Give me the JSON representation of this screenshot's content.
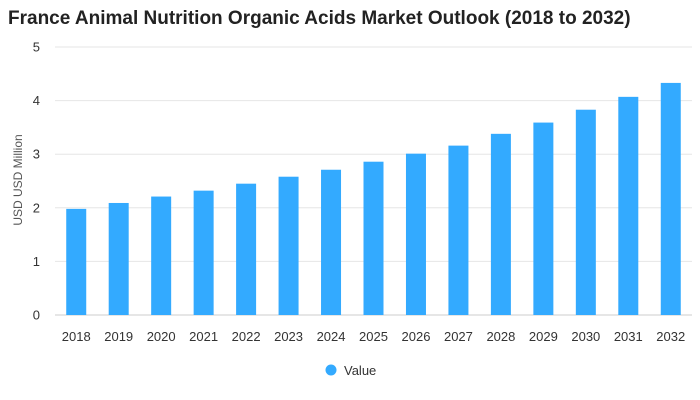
{
  "chart_data": {
    "type": "bar",
    "title": "France Animal Nutrition Organic Acids Market Outlook (2018 to 2032)",
    "xlabel": "",
    "ylabel": "USD USD Million",
    "categories": [
      "2018",
      "2019",
      "2020",
      "2021",
      "2022",
      "2023",
      "2024",
      "2025",
      "2026",
      "2027",
      "2028",
      "2029",
      "2030",
      "2031",
      "2032"
    ],
    "series": [
      {
        "name": "Value",
        "color": "#33aaff",
        "values": [
          1.98,
          2.09,
          2.21,
          2.32,
          2.45,
          2.58,
          2.71,
          2.86,
          3.01,
          3.16,
          3.38,
          3.59,
          3.83,
          4.07,
          4.33
        ]
      }
    ],
    "ylim": [
      0,
      5
    ],
    "yticks": [
      "0",
      "1",
      "2",
      "3",
      "4",
      "5"
    ],
    "grid": true,
    "legend": "bottom-center"
  }
}
